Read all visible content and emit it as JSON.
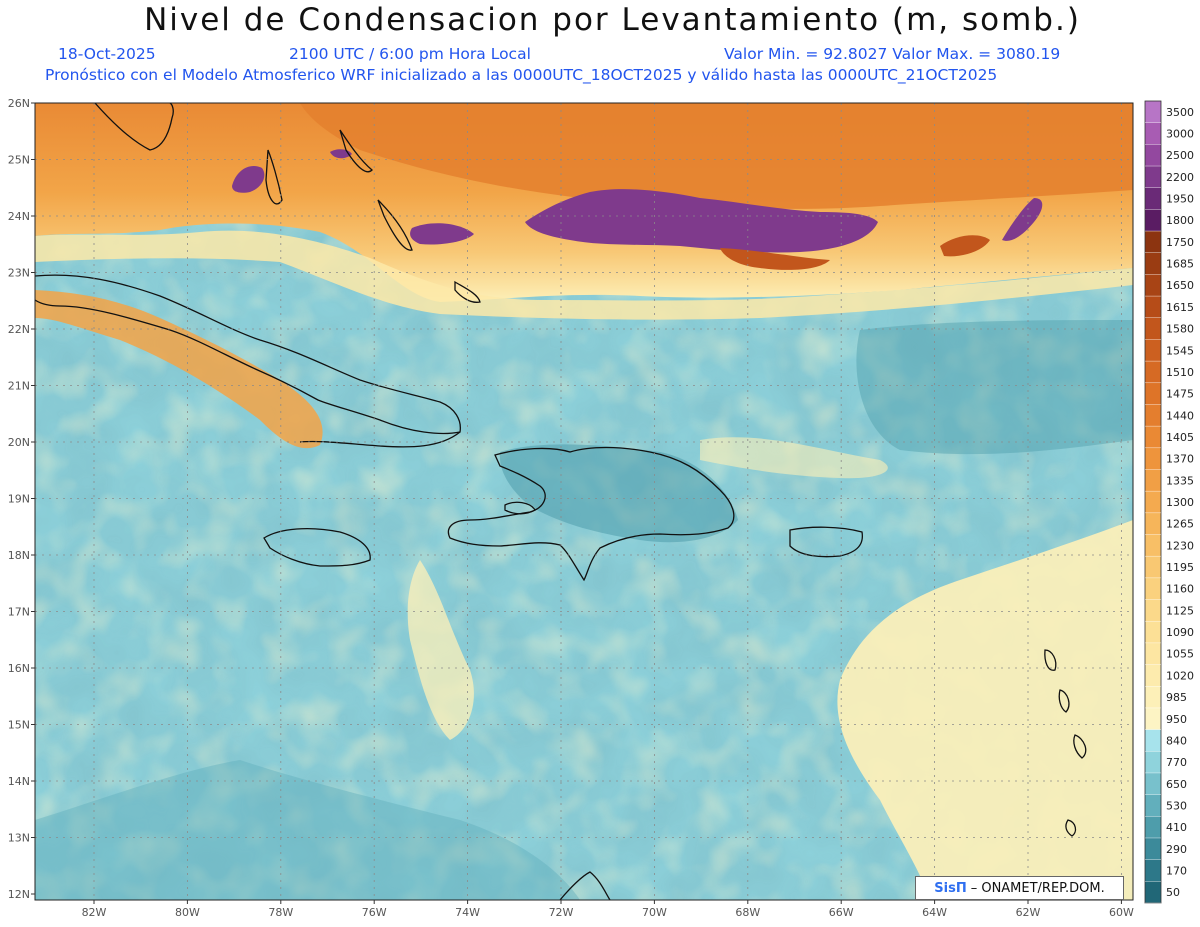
{
  "header": {
    "title": "Nivel de Condensacion por Levantamiento (m, somb.)",
    "date": "18-Oct-2025",
    "time": "2100 UTC / 6:00 pm Hora Local",
    "minmax": "Valor Min. = 92.8027  Valor Max. = 3080.19",
    "model_info": "Pronóstico con el Modelo Atmosferico WRF inicializado a las 0000UTC_18OCT2025 y válido hasta las  0000UTC_21OCT2025"
  },
  "map": {
    "lat_labels": [
      "26N",
      "25N",
      "24N",
      "23N",
      "22N",
      "21N",
      "20N",
      "19N",
      "18N",
      "17N",
      "16N",
      "15N",
      "14N",
      "13N",
      "12N"
    ],
    "lon_labels": [
      "82W",
      "80W",
      "78W",
      "76W",
      "74W",
      "72W",
      "70W",
      "68W",
      "66W",
      "64W",
      "62W",
      "60W"
    ]
  },
  "colorbar": {
    "labels": [
      "3500",
      "3000",
      "2500",
      "2200",
      "1950",
      "1800",
      "1750",
      "1685",
      "1650",
      "1615",
      "1580",
      "1545",
      "1510",
      "1475",
      "1440",
      "1405",
      "1370",
      "1335",
      "1300",
      "1265",
      "1230",
      "1195",
      "1160",
      "1125",
      "1090",
      "1055",
      "1020",
      "985",
      "950",
      "840",
      "770",
      "650",
      "530",
      "410",
      "290",
      "170",
      "50"
    ],
    "colors": [
      "#b775c6",
      "#a85cb3",
      "#93489f",
      "#7f3a8c",
      "#6a2a77",
      "#5a1c63",
      "#8c3410",
      "#9a3c12",
      "#a84415",
      "#b64c18",
      "#c2561c",
      "#cc6020",
      "#d66a24",
      "#de7428",
      "#e47e2e",
      "#ea8934",
      "#ee943c",
      "#f19f45",
      "#f4aa4f",
      "#f6b55a",
      "#f8bf66",
      "#f9c872",
      "#fad17e",
      "#fbd98a",
      "#fce096",
      "#fde6a2",
      "#fdebad",
      "#fdf0b8",
      "#fdf4c4",
      "#a7e3ec",
      "#8fd3dc",
      "#78c1cc",
      "#62afbc",
      "#4e9dab",
      "#3c8a9a",
      "#2d7889",
      "#216777"
    ]
  },
  "credit": {
    "brand": "SisΠ",
    "text": "– ONAMET/REP.DOM."
  }
}
